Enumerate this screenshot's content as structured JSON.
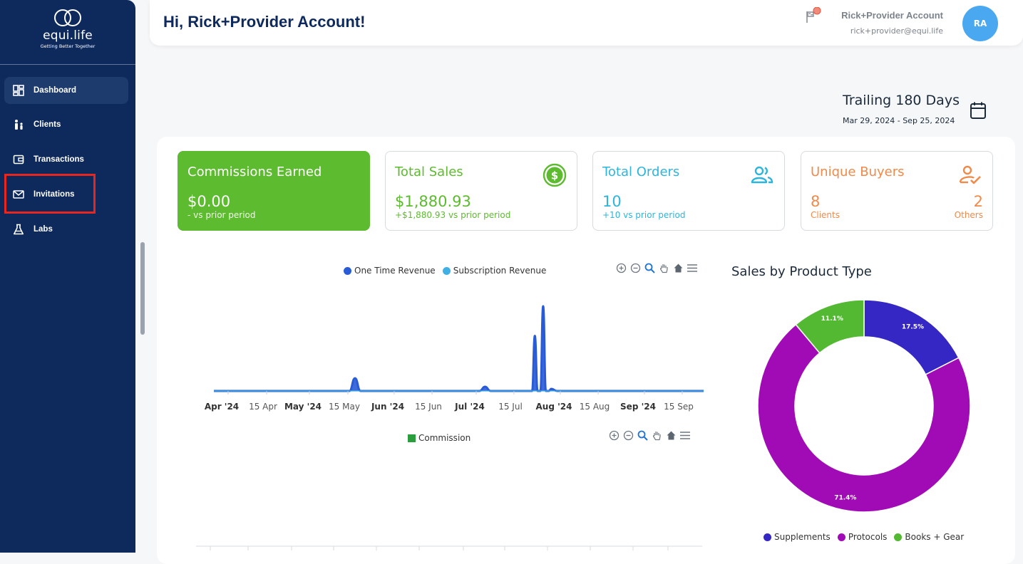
{
  "brand": {
    "name": "equi.life",
    "tagline": "Getting Better Together"
  },
  "nav": [
    {
      "label": "Dashboard",
      "icon": "dashboard-icon",
      "active": true
    },
    {
      "label": "Clients",
      "icon": "clients-icon"
    },
    {
      "label": "Transactions",
      "icon": "transactions-icon"
    },
    {
      "label": "Invitations",
      "icon": "envelope-icon"
    },
    {
      "label": "Labs",
      "icon": "flask-icon"
    }
  ],
  "header": {
    "greeting": "Hi, Rick+Provider Account!",
    "user_name": "Rick+Provider Account",
    "user_email": "rick+provider@equi.life",
    "avatar_initials": "RA"
  },
  "period": {
    "title": "Trailing 180 Days",
    "range": "Mar 29, 2024 - Sep 25, 2024"
  },
  "stats": {
    "commissions": {
      "title": "Commissions Earned",
      "value": "$0.00",
      "sub": "- vs prior period"
    },
    "sales": {
      "title": "Total Sales",
      "value": "$1,880.93",
      "sub": "+$1,880.93 vs prior period"
    },
    "orders": {
      "title": "Total Orders",
      "value": "10",
      "sub": "+10 vs prior period"
    },
    "buyers": {
      "title": "Unique Buyers",
      "clients_value": "8",
      "clients_label": "Clients",
      "others_value": "2",
      "others_label": "Others"
    }
  },
  "colors": {
    "sidebar": "#0e2a5c",
    "green": "#5dbb2f",
    "cyan": "#2eb5dc",
    "orange": "#f08a4b",
    "one_time": "#2a5bd7",
    "subscription": "#3fb0e6",
    "commission": "#2a9d3c",
    "supplements": "#3527c4",
    "protocols": "#a10bb5",
    "books": "#53b832"
  },
  "chart_data": [
    {
      "type": "area",
      "series": [
        {
          "name": "One Time Revenue",
          "x": [
            "2024-04-01",
            "2024-05-20",
            "2024-05-22",
            "2024-05-24",
            "2024-07-06",
            "2024-07-08",
            "2024-07-10",
            "2024-07-25",
            "2024-07-26",
            "2024-07-27",
            "2024-07-28",
            "2024-07-29",
            "2024-07-30",
            "2024-07-31",
            "2024-08-01",
            "2024-08-03",
            "2024-09-25"
          ],
          "values": [
            0,
            0,
            120,
            0,
            0,
            40,
            0,
            0,
            520,
            0,
            0,
            800,
            0,
            0,
            20,
            0,
            0
          ]
        },
        {
          "name": "Subscription Revenue",
          "x": [
            "2024-04-01",
            "2024-09-25"
          ],
          "values": [
            0,
            0
          ]
        }
      ],
      "x_ticks": [
        "Apr '24",
        "15 Apr",
        "May '24",
        "15 May",
        "Jun '24",
        "15 Jun",
        "Jul '24",
        "15 Jul",
        "Aug '24",
        "15 Aug",
        "Sep '24",
        "15 Sep"
      ],
      "legend": "top-center",
      "grid": false
    },
    {
      "type": "bar",
      "series": [
        {
          "name": "Commission",
          "values": []
        }
      ],
      "legend": "top-center"
    },
    {
      "type": "pie",
      "title": "Sales by Product Type",
      "categories": [
        "Supplements",
        "Protocols",
        "Books + Gear"
      ],
      "values": [
        17.5,
        71.4,
        11.1
      ],
      "labels": [
        "17.5%",
        "71.4%",
        "11.1%"
      ],
      "legend": "bottom"
    }
  ]
}
